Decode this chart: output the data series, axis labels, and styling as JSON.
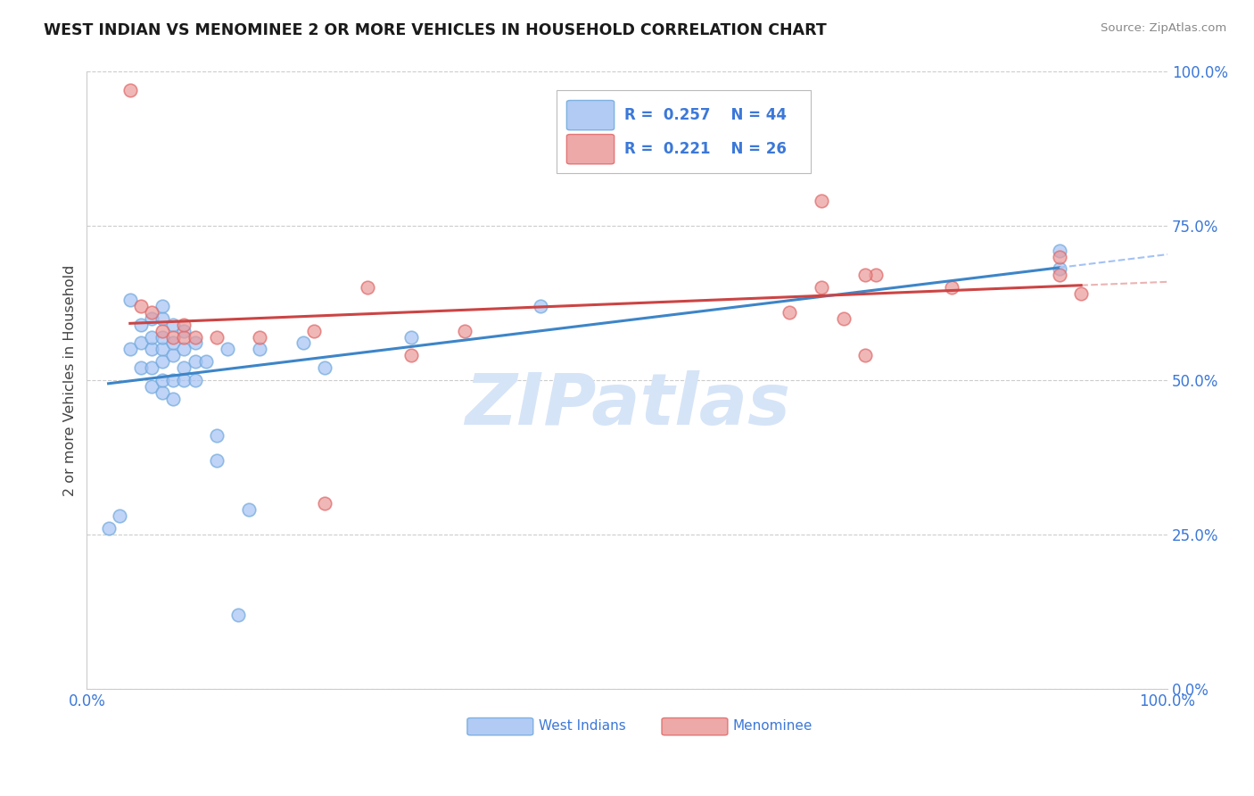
{
  "title": "WEST INDIAN VS MENOMINEE 2 OR MORE VEHICLES IN HOUSEHOLD CORRELATION CHART",
  "source": "Source: ZipAtlas.com",
  "ylabel": "2 or more Vehicles in Household",
  "xlim": [
    0.0,
    1.0
  ],
  "ylim": [
    0.0,
    1.0
  ],
  "ytick_values": [
    0.0,
    0.25,
    0.5,
    0.75,
    1.0
  ],
  "ytick_labels": [
    "0.0%",
    "25.0%",
    "50.0%",
    "75.0%",
    "100.0%"
  ],
  "xtick_values": [
    0.0,
    1.0
  ],
  "xtick_labels": [
    "0.0%",
    "100.0%"
  ],
  "grid_color": "#cccccc",
  "background_color": "#ffffff",
  "legend_R_blue": "0.257",
  "legend_N_blue": "44",
  "legend_R_pink": "0.221",
  "legend_N_pink": "26",
  "blue_scatter_color": "#a4c2f4",
  "blue_scatter_edge": "#6fa8dc",
  "pink_scatter_color": "#ea9999",
  "pink_scatter_edge": "#e06666",
  "trend_blue_color": "#3d85c8",
  "trend_pink_color": "#cc4444",
  "trend_blue_dash_color": "#a4c2f4",
  "watermark_text": "ZIPatlas",
  "watermark_color": "#d6e4f7",
  "legend_label_blue": "West Indians",
  "legend_label_pink": "Menominee",
  "west_indian_x": [
    0.02,
    0.03,
    0.04,
    0.04,
    0.05,
    0.05,
    0.05,
    0.05,
    0.05,
    0.06,
    0.06,
    0.06,
    0.06,
    0.06,
    0.07,
    0.07,
    0.07,
    0.07,
    0.07,
    0.07,
    0.07,
    0.08,
    0.08,
    0.08,
    0.08,
    0.08,
    0.09,
    0.09,
    0.09,
    0.09,
    0.1,
    0.1,
    0.11,
    0.12,
    0.12,
    0.13,
    0.15,
    0.16,
    0.2,
    0.22,
    0.3,
    0.42,
    0.9,
    0.9
  ],
  "west_indian_y": [
    0.27,
    0.3,
    0.55,
    0.62,
    0.52,
    0.56,
    0.57,
    0.6,
    0.62,
    0.5,
    0.52,
    0.54,
    0.57,
    0.6,
    0.48,
    0.5,
    0.53,
    0.55,
    0.57,
    0.59,
    0.62,
    0.47,
    0.5,
    0.53,
    0.56,
    0.59,
    0.5,
    0.52,
    0.55,
    0.58,
    0.5,
    0.55,
    0.53,
    0.38,
    0.42,
    0.55,
    0.3,
    0.55,
    0.56,
    0.52,
    0.57,
    0.62,
    0.68,
    0.7
  ],
  "menominee_x": [
    0.04,
    0.05,
    0.06,
    0.07,
    0.08,
    0.09,
    0.09,
    0.1,
    0.12,
    0.16,
    0.21,
    0.26,
    0.3,
    0.35,
    0.65,
    0.68,
    0.7,
    0.72,
    0.73,
    0.8,
    0.9,
    0.9,
    0.92,
    0.21,
    0.3,
    0.7
  ],
  "menominee_y": [
    0.96,
    0.6,
    0.62,
    0.58,
    0.58,
    0.57,
    0.6,
    0.57,
    0.58,
    0.57,
    0.58,
    0.65,
    0.55,
    0.57,
    0.6,
    0.65,
    0.6,
    0.55,
    0.67,
    0.65,
    0.67,
    0.7,
    0.63,
    0.3,
    0.55,
    0.78
  ]
}
